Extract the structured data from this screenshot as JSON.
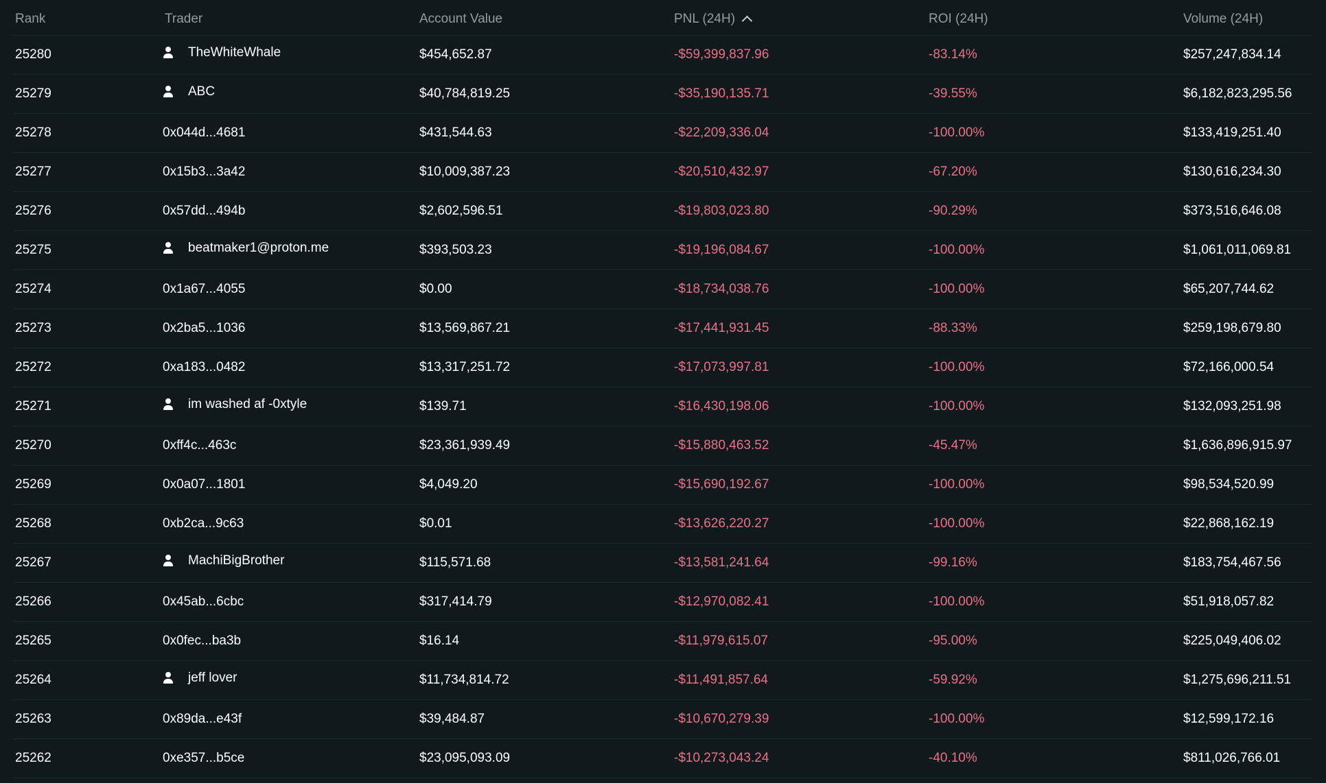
{
  "header": {
    "rank": "Rank",
    "trader": "Trader",
    "account_value": "Account Value",
    "pnl": "PNL (24H)",
    "roi": "ROI (24H)",
    "volume": "Volume (24H)"
  },
  "rows": [
    {
      "rank": "25280",
      "trader": "TheWhiteWhale",
      "named": true,
      "account_value": "$454,652.87",
      "pnl": "-$59,399,837.96",
      "roi": "-83.14%",
      "volume": "$257,247,834.14"
    },
    {
      "rank": "25279",
      "trader": "ABC",
      "named": true,
      "account_value": "$40,784,819.25",
      "pnl": "-$35,190,135.71",
      "roi": "-39.55%",
      "volume": "$6,182,823,295.56"
    },
    {
      "rank": "25278",
      "trader": "0x044d...4681",
      "named": false,
      "account_value": "$431,544.63",
      "pnl": "-$22,209,336.04",
      "roi": "-100.00%",
      "volume": "$133,419,251.40"
    },
    {
      "rank": "25277",
      "trader": "0x15b3...3a42",
      "named": false,
      "account_value": "$10,009,387.23",
      "pnl": "-$20,510,432.97",
      "roi": "-67.20%",
      "volume": "$130,616,234.30"
    },
    {
      "rank": "25276",
      "trader": "0x57dd...494b",
      "named": false,
      "account_value": "$2,602,596.51",
      "pnl": "-$19,803,023.80",
      "roi": "-90.29%",
      "volume": "$373,516,646.08"
    },
    {
      "rank": "25275",
      "trader": "beatmaker1@proton.me",
      "named": true,
      "account_value": "$393,503.23",
      "pnl": "-$19,196,084.67",
      "roi": "-100.00%",
      "volume": "$1,061,011,069.81"
    },
    {
      "rank": "25274",
      "trader": "0x1a67...4055",
      "named": false,
      "account_value": "$0.00",
      "pnl": "-$18,734,038.76",
      "roi": "-100.00%",
      "volume": "$65,207,744.62"
    },
    {
      "rank": "25273",
      "trader": "0x2ba5...1036",
      "named": false,
      "account_value": "$13,569,867.21",
      "pnl": "-$17,441,931.45",
      "roi": "-88.33%",
      "volume": "$259,198,679.80"
    },
    {
      "rank": "25272",
      "trader": "0xa183...0482",
      "named": false,
      "account_value": "$13,317,251.72",
      "pnl": "-$17,073,997.81",
      "roi": "-100.00%",
      "volume": "$72,166,000.54"
    },
    {
      "rank": "25271",
      "trader": "im washed af -0xtyle",
      "named": true,
      "account_value": "$139.71",
      "pnl": "-$16,430,198.06",
      "roi": "-100.00%",
      "volume": "$132,093,251.98"
    },
    {
      "rank": "25270",
      "trader": "0xff4c...463c",
      "named": false,
      "account_value": "$23,361,939.49",
      "pnl": "-$15,880,463.52",
      "roi": "-45.47%",
      "volume": "$1,636,896,915.97"
    },
    {
      "rank": "25269",
      "trader": "0x0a07...1801",
      "named": false,
      "account_value": "$4,049.20",
      "pnl": "-$15,690,192.67",
      "roi": "-100.00%",
      "volume": "$98,534,520.99"
    },
    {
      "rank": "25268",
      "trader": "0xb2ca...9c63",
      "named": false,
      "account_value": "$0.01",
      "pnl": "-$13,626,220.27",
      "roi": "-100.00%",
      "volume": "$22,868,162.19"
    },
    {
      "rank": "25267",
      "trader": "MachiBigBrother",
      "named": true,
      "account_value": "$115,571.68",
      "pnl": "-$13,581,241.64",
      "roi": "-99.16%",
      "volume": "$183,754,467.56"
    },
    {
      "rank": "25266",
      "trader": "0x45ab...6cbc",
      "named": false,
      "account_value": "$317,414.79",
      "pnl": "-$12,970,082.41",
      "roi": "-100.00%",
      "volume": "$51,918,057.82"
    },
    {
      "rank": "25265",
      "trader": "0x0fec...ba3b",
      "named": false,
      "account_value": "$16.14",
      "pnl": "-$11,979,615.07",
      "roi": "-95.00%",
      "volume": "$225,049,406.02"
    },
    {
      "rank": "25264",
      "trader": "jeff lover",
      "named": true,
      "account_value": "$11,734,814.72",
      "pnl": "-$11,491,857.64",
      "roi": "-59.92%",
      "volume": "$1,275,696,211.51"
    },
    {
      "rank": "25263",
      "trader": "0x89da...e43f",
      "named": false,
      "account_value": "$39,484.87",
      "pnl": "-$10,670,279.39",
      "roi": "-100.00%",
      "volume": "$12,599,172.16"
    },
    {
      "rank": "25262",
      "trader": "0xe357...b5ce",
      "named": false,
      "account_value": "$23,095,093.09",
      "pnl": "-$10,273,043.24",
      "roi": "-40.10%",
      "volume": "$811,026,766.01"
    }
  ],
  "icons": {
    "user": "user-icon",
    "sort": "chevron-up-icon"
  },
  "colors": {
    "background": "#10191c",
    "header_text": "#949e9c",
    "negative": "#ed7088",
    "text": "#ffffff"
  }
}
